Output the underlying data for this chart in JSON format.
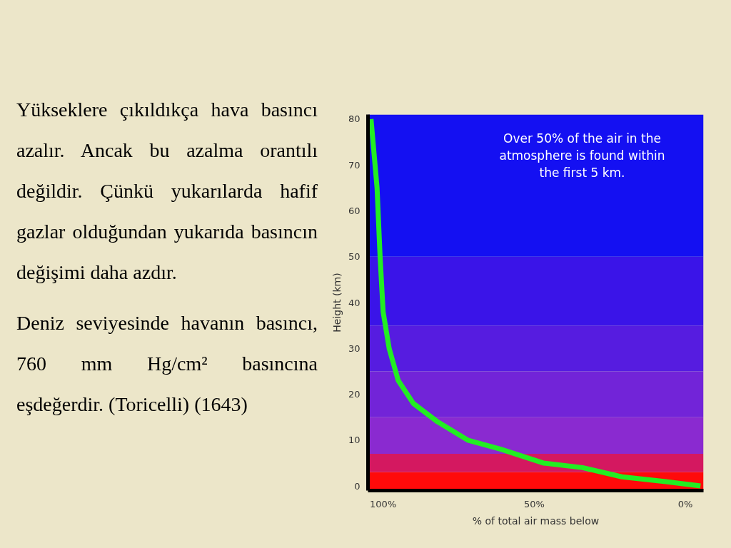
{
  "chart_data": {
    "type": "line",
    "xlabel": "% of total air mass below",
    "ylabel": "Height (km)",
    "x": [
      104,
      102,
      101,
      100,
      98,
      95,
      90,
      82,
      72,
      61,
      47,
      34,
      21,
      7,
      -5
    ],
    "series": [
      {
        "color": "#22ee22",
        "values": [
          80,
          65,
          50,
          38,
          30,
          23,
          18,
          14,
          10,
          8,
          5,
          4,
          2,
          1,
          0
        ]
      }
    ],
    "xlim": [
      105,
      -6
    ],
    "ylim": [
      -1,
      81
    ],
    "xticks": [
      {
        "value": 100,
        "label": "100%"
      },
      {
        "value": 50,
        "label": "50%"
      },
      {
        "value": 0,
        "label": "0%"
      }
    ],
    "yticks": [
      0,
      10,
      20,
      30,
      40,
      50,
      60,
      70,
      80
    ],
    "grid": false,
    "marker": "none",
    "line_style": "solid",
    "bands": [
      {
        "axis": "y",
        "from": -1,
        "to": 3,
        "color": "#ff0a0a"
      },
      {
        "axis": "y",
        "from": 3,
        "to": 7,
        "color": "#d41860"
      },
      {
        "axis": "y",
        "from": 7,
        "to": 15,
        "color": "#8a2ad0"
      },
      {
        "axis": "y",
        "from": 15,
        "to": 25,
        "color": "#7224d8"
      },
      {
        "axis": "y",
        "from": 25,
        "to": 35,
        "color": "#561ce0"
      },
      {
        "axis": "y",
        "from": 35,
        "to": 50,
        "color": "#3a14e8"
      },
      {
        "axis": "y",
        "from": 50,
        "to": 81,
        "color": "#1410f2"
      }
    ],
    "annotations": [
      "Over 50% of the air in the atmosphere is found within the first 5 km.",
      "Yükseklere çıkıldıkça hava basıncı azalır. Ancak bu azalma orantılı değildir. Çünkü yukarılarda hafif gazlar olduğundan yukarıda basıncın değişimi daha azdır.",
      "Deniz seviyesinde havanın basıncı, 760 mm Hg/cm² basıncına eşdeğerdir. (Toricelli) (1643)"
    ]
  }
}
